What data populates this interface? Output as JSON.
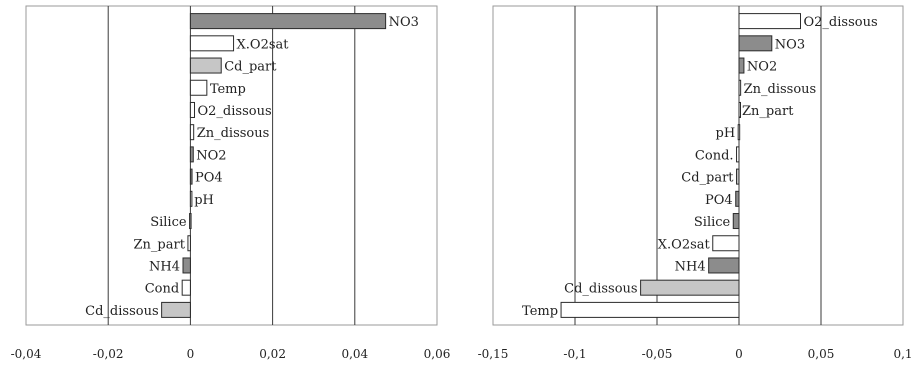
{
  "colors": {
    "white_bar": "#ffffff",
    "dark_bar": "#8c8c8c",
    "light_bar": "#c6c6c6",
    "bar_stroke": "#2b2b2b",
    "frame": "#9a9a9a",
    "grid": "#3a3a3a"
  },
  "chart_data": [
    {
      "type": "bar",
      "orientation": "horizontal",
      "xlim": [
        -0.04,
        0.06
      ],
      "ticks": [
        -0.04,
        -0.02,
        0,
        0.02,
        0.04,
        0.06
      ],
      "tick_labels": [
        "-0,04",
        "-0,02",
        "0",
        "0,02",
        "0,04",
        "0,06"
      ],
      "grid": true,
      "bars": [
        {
          "label": "NO3",
          "value": 0.0475,
          "fill": "dark"
        },
        {
          "label": "X.O2sat",
          "value": 0.0105,
          "fill": "white"
        },
        {
          "label": "Cd_part",
          "value": 0.0075,
          "fill": "light"
        },
        {
          "label": "Temp",
          "value": 0.004,
          "fill": "white"
        },
        {
          "label": "O2_dissous",
          "value": 0.001,
          "fill": "white"
        },
        {
          "label": "Zn_dissous",
          "value": 0.0008,
          "fill": "white"
        },
        {
          "label": "NO2",
          "value": 0.0007,
          "fill": "dark"
        },
        {
          "label": "PO4",
          "value": 0.0004,
          "fill": "dark"
        },
        {
          "label": "pH",
          "value": 0.0002,
          "fill": "white"
        },
        {
          "label": "Silice",
          "value": -0.0002,
          "fill": "dark"
        },
        {
          "label": "Zn_part",
          "value": -0.0006,
          "fill": "white"
        },
        {
          "label": "NH4",
          "value": -0.0018,
          "fill": "dark"
        },
        {
          "label": "Cond",
          "value": -0.002,
          "fill": "white"
        },
        {
          "label": "Cd_dissous",
          "value": -0.007,
          "fill": "light"
        }
      ]
    },
    {
      "type": "bar",
      "orientation": "horizontal",
      "xlim": [
        -0.15,
        0.1
      ],
      "ticks": [
        -0.15,
        -0.1,
        -0.05,
        0,
        0.05,
        0.1
      ],
      "tick_labels": [
        "-0,15",
        "-0,1",
        "-0,05",
        "0",
        "0,05",
        "0,1"
      ],
      "grid": true,
      "bars": [
        {
          "label": "O2_dissous",
          "value": 0.0375,
          "fill": "white"
        },
        {
          "label": "NO3",
          "value": 0.02,
          "fill": "dark"
        },
        {
          "label": "NO2",
          "value": 0.003,
          "fill": "dark"
        },
        {
          "label": "Zn_dissous",
          "value": 0.001,
          "fill": "white"
        },
        {
          "label": "Zn_part",
          "value": 0.0,
          "fill": "white"
        },
        {
          "label": "pH",
          "value": -0.0005,
          "fill": "white"
        },
        {
          "label": "Cond.",
          "value": -0.0015,
          "fill": "white"
        },
        {
          "label": "Cd_part",
          "value": -0.0015,
          "fill": "light"
        },
        {
          "label": "PO4",
          "value": -0.002,
          "fill": "dark"
        },
        {
          "label": "Silice",
          "value": -0.0035,
          "fill": "dark"
        },
        {
          "label": "X.O2sat",
          "value": -0.016,
          "fill": "white"
        },
        {
          "label": "NH4",
          "value": -0.0185,
          "fill": "dark"
        },
        {
          "label": "Cd_dissous",
          "value": -0.06,
          "fill": "light"
        },
        {
          "label": "Temp",
          "value": -0.1085,
          "fill": "white"
        }
      ]
    }
  ]
}
